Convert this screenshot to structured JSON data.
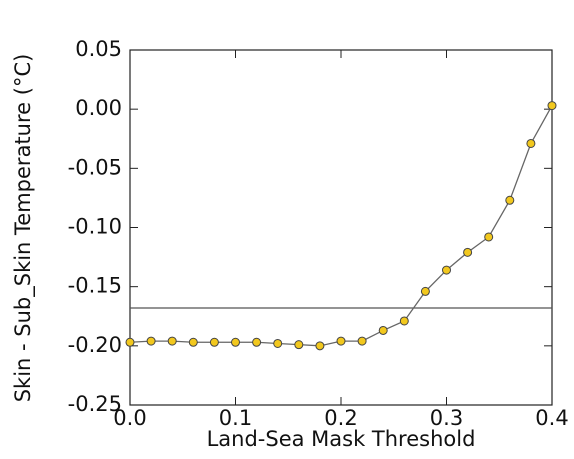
{
  "chart_data": {
    "type": "line",
    "x_label": "Land-Sea Mask Threshold",
    "y_label": "Skin - Sub_Skin Temperature (°C)",
    "x": [
      0,
      0.02,
      0.04,
      0.06,
      0.08,
      0.1,
      0.12,
      0.14,
      0.16,
      0.18,
      0.2,
      0.22,
      0.24,
      0.26,
      0.28,
      0.3,
      0.32,
      0.34,
      0.36,
      0.38,
      0.4
    ],
    "series": [
      {
        "color": "#f2c81e",
        "line_color": "#666666",
        "values": [
          -0.197,
          -0.196,
          -0.196,
          -0.197,
          -0.197,
          -0.197,
          -0.197,
          -0.198,
          -0.199,
          -0.2,
          -0.196,
          -0.196,
          -0.187,
          -0.179,
          -0.154,
          -0.136,
          -0.121,
          -0.108,
          -0.077,
          -0.029,
          0.003
        ]
      }
    ],
    "reference_line": -0.168,
    "xlim": [
      0,
      0.4
    ],
    "ylim": [
      -0.25,
      0.05
    ],
    "xticks": [
      {
        "value": 0,
        "label": "0.0"
      },
      0.1,
      0.2,
      0.3,
      0.4
    ],
    "yticks": [
      0.05,
      {
        "value": 0,
        "label": "0.00"
      },
      -0.05,
      {
        "value": -0.1,
        "label": "-0.10"
      },
      -0.15,
      {
        "value": -0.2,
        "label": "-0.20"
      },
      -0.25
    ]
  }
}
